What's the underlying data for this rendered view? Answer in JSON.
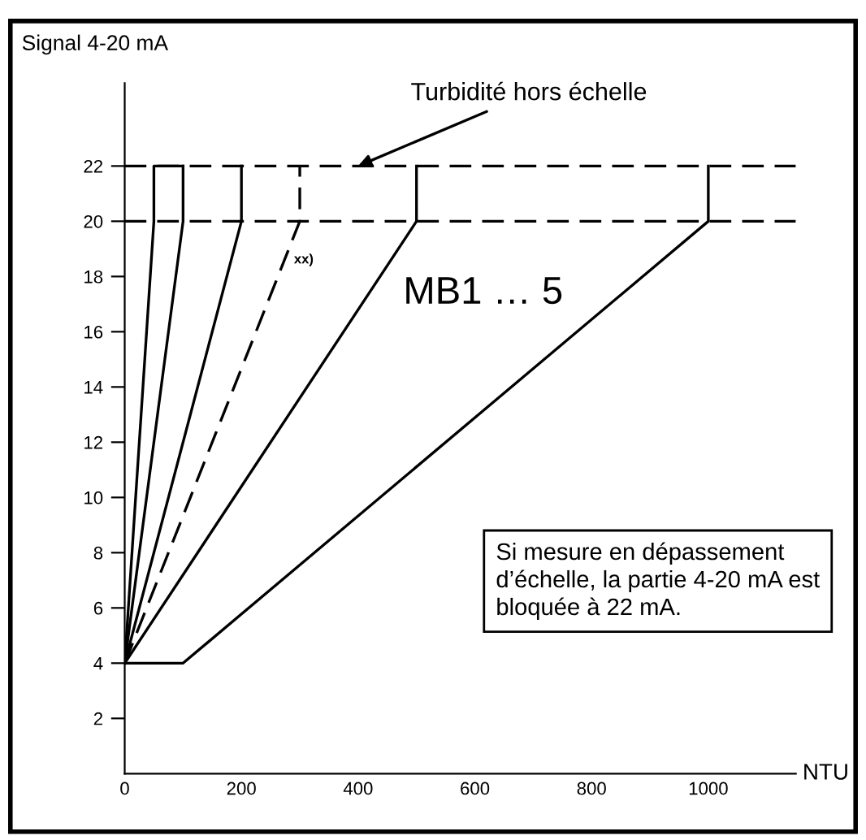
{
  "chart_data": {
    "type": "line",
    "xlabel": "NTU",
    "ylabel": "Signal 4-20 mA",
    "xlim": [
      0,
      1150
    ],
    "xticks": [
      0,
      200,
      400,
      600,
      800,
      1000
    ],
    "ylim": [
      0,
      25
    ],
    "yticks": [
      2,
      4,
      6,
      8,
      10,
      12,
      14,
      16,
      18,
      20,
      22
    ],
    "grid": false,
    "marker": "none",
    "series": [
      {
        "color": "#000000",
        "line_style": "solid",
        "x": [
          0,
          50,
          50,
          100
        ],
        "values": [
          4,
          20,
          22,
          22
        ]
      },
      {
        "color": "#000000",
        "line_style": "solid",
        "x": [
          0,
          100,
          100
        ],
        "values": [
          4,
          20,
          22
        ]
      },
      {
        "color": "#000000",
        "line_style": "solid",
        "x": [
          0,
          200,
          200
        ],
        "values": [
          4,
          20,
          22
        ]
      },
      {
        "color": "#000000",
        "line_style": "dashed",
        "x": [
          0,
          300,
          300
        ],
        "values": [
          4,
          20,
          22
        ]
      },
      {
        "color": "#000000",
        "line_style": "solid",
        "x": [
          0,
          500,
          500
        ],
        "values": [
          4,
          20,
          22
        ]
      },
      {
        "color": "#000000",
        "line_style": "solid",
        "x": [
          0,
          100,
          1000,
          1000
        ],
        "values": [
          4,
          4,
          20,
          22
        ]
      }
    ],
    "ref_lines": [
      {
        "axis": "y",
        "value": 20,
        "color": "#000000",
        "line_style": "dashed"
      },
      {
        "axis": "y",
        "value": 22,
        "color": "#000000",
        "line_style": "dashed"
      }
    ],
    "annotations": [
      {
        "text": "Turbidité hors échelle",
        "x": 400,
        "y": 22
      },
      {
        "text": "xx)",
        "x": 290,
        "y": 18.6
      },
      "MB1 … 5",
      "Si mesure en dépassement d’échelle, la partie 4-20 mA est bloquée à 22 mA."
    ]
  }
}
